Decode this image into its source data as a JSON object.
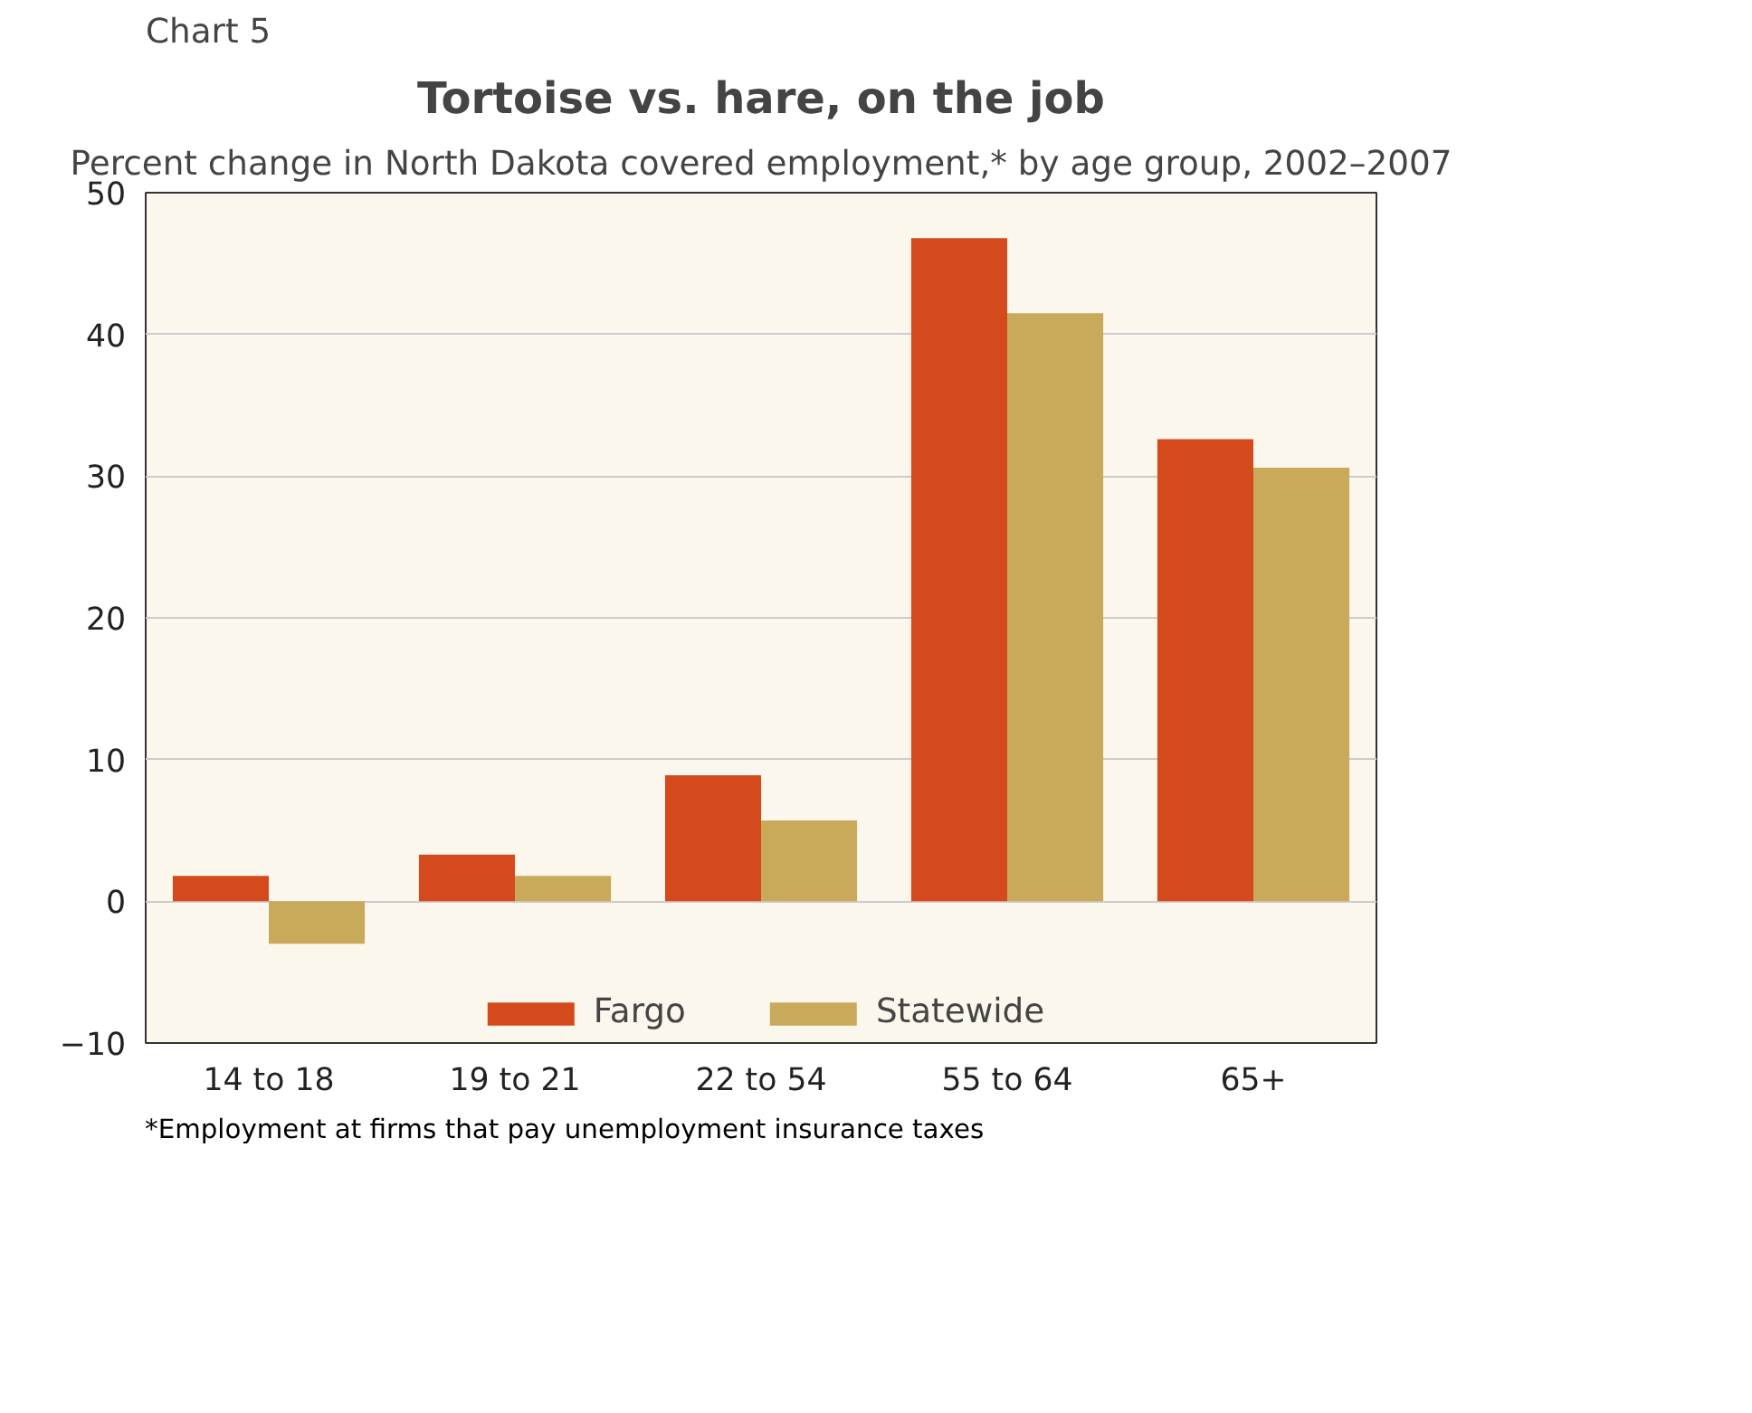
{
  "chart_data": {
    "type": "bar",
    "title": "Tortoise vs. hare, on the job",
    "subtitle": "Percent change in North Dakota covered employment,* by age group, 2002–2007",
    "categories": [
      "14 to 18",
      "19 to 21",
      "22 to 54",
      "55 to 64",
      "65+"
    ],
    "series": [
      {
        "name": "Fargo",
        "color": "#d44a1c",
        "values": [
          1.8,
          3.3,
          8.9,
          46.8,
          32.6
        ]
      },
      {
        "name": "Statewide",
        "color": "#c9a95a",
        "values": [
          -3.0,
          1.8,
          5.7,
          41.5,
          30.6
        ]
      }
    ],
    "ylim": [
      -10,
      50
    ],
    "yticks": [
      -10,
      0,
      10,
      20,
      30,
      40,
      50
    ],
    "grid": "y",
    "legend": "bottom",
    "annotations": [
      "Chart 5",
      "*Employment at firms that pay unemployment insurance taxes"
    ]
  }
}
